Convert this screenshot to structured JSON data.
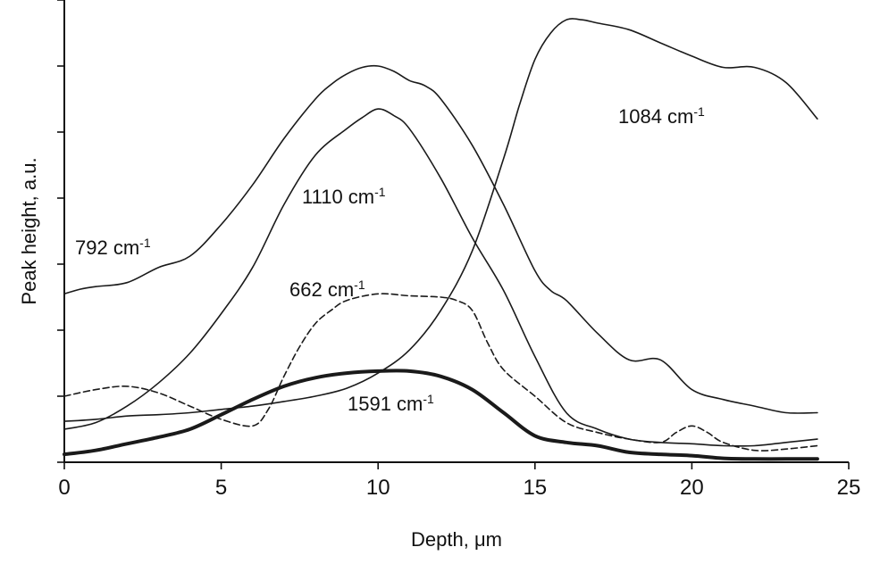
{
  "chart_data": {
    "type": "line",
    "title": "",
    "xlabel": "Depth, μm",
    "ylabel": "Peak height, a.u.",
    "xlim": [
      0,
      25
    ],
    "ylim": [
      0,
      7
    ],
    "x_ticks": [
      "0",
      "5",
      "10",
      "15",
      "20",
      "25"
    ],
    "grid": false,
    "legend": "none (series labelled inline)",
    "series": [
      {
        "name": "792 cm-1",
        "label_base": "792 cm",
        "label_sup": "-1",
        "style": "solid",
        "x": [
          0,
          0.5,
          1,
          2,
          3,
          4,
          5,
          6,
          7,
          8,
          8.5,
          9,
          9.5,
          10,
          10.5,
          11,
          11.5,
          12,
          13,
          14,
          15,
          15.5,
          16,
          17,
          18,
          19,
          20,
          21,
          22,
          23,
          24
        ],
        "y": [
          2.55,
          2.62,
          2.66,
          2.72,
          2.95,
          3.12,
          3.6,
          4.2,
          4.9,
          5.5,
          5.72,
          5.88,
          5.98,
          6.0,
          5.92,
          5.78,
          5.7,
          5.5,
          4.8,
          3.9,
          2.9,
          2.6,
          2.45,
          1.95,
          1.55,
          1.55,
          1.1,
          0.95,
          0.85,
          0.75,
          0.75
        ]
      },
      {
        "name": "1110 cm-1",
        "label_base": "1110 cm",
        "label_sup": "-1",
        "style": "solid",
        "x": [
          0,
          1,
          2,
          3,
          4,
          5,
          6,
          7,
          8,
          9,
          9.5,
          10,
          10.5,
          11,
          12,
          13,
          14,
          15,
          16,
          17,
          18,
          19,
          20,
          21,
          22,
          23,
          24
        ],
        "y": [
          0.5,
          0.6,
          0.85,
          1.2,
          1.65,
          2.25,
          2.95,
          3.9,
          4.65,
          5.05,
          5.22,
          5.35,
          5.25,
          5.05,
          4.3,
          3.4,
          2.6,
          1.6,
          0.75,
          0.5,
          0.35,
          0.3,
          0.28,
          0.25,
          0.25,
          0.3,
          0.35
        ]
      },
      {
        "name": "1084 cm-1",
        "label_base": "1084 cm",
        "label_sup": "-1",
        "style": "solid",
        "x": [
          0,
          1,
          2,
          3,
          4,
          5,
          6,
          7,
          8,
          9,
          10,
          11,
          12,
          13,
          14,
          14.5,
          15,
          15.5,
          16,
          16.5,
          17,
          18,
          19,
          20,
          21,
          22,
          23,
          24
        ],
        "y": [
          0.62,
          0.65,
          0.7,
          0.72,
          0.75,
          0.8,
          0.85,
          0.92,
          1.0,
          1.12,
          1.35,
          1.7,
          2.3,
          3.2,
          4.6,
          5.4,
          6.1,
          6.5,
          6.7,
          6.7,
          6.65,
          6.55,
          6.35,
          6.15,
          5.98,
          5.98,
          5.75,
          5.2
        ]
      },
      {
        "name": "662 cm-1",
        "label_base": "662 cm",
        "label_sup": "-1",
        "style": "dashed",
        "x": [
          0,
          1,
          2,
          3,
          4,
          5,
          6,
          6.5,
          7,
          7.5,
          8,
          8.5,
          9,
          10,
          11,
          12,
          12.5,
          13,
          13.5,
          14,
          15,
          16,
          17,
          18,
          19,
          19.5,
          20,
          20.5,
          21,
          22,
          23,
          24
        ],
        "y": [
          1.0,
          1.1,
          1.15,
          1.05,
          0.85,
          0.65,
          0.55,
          0.8,
          1.3,
          1.75,
          2.1,
          2.3,
          2.45,
          2.55,
          2.52,
          2.5,
          2.45,
          2.3,
          1.8,
          1.4,
          1.0,
          0.6,
          0.45,
          0.35,
          0.3,
          0.45,
          0.55,
          0.45,
          0.3,
          0.18,
          0.2,
          0.25
        ]
      },
      {
        "name": "1591 cm-1",
        "label_base": "1591 cm",
        "label_sup": "-1",
        "style": "thick",
        "x": [
          0,
          1,
          2,
          3,
          4,
          5,
          6,
          7,
          8,
          9,
          10,
          11,
          12,
          13,
          14,
          15,
          16,
          17,
          18,
          19,
          20,
          21,
          22,
          23,
          24
        ],
        "y": [
          0.12,
          0.18,
          0.28,
          0.38,
          0.5,
          0.72,
          0.95,
          1.15,
          1.28,
          1.35,
          1.38,
          1.38,
          1.3,
          1.1,
          0.75,
          0.4,
          0.3,
          0.25,
          0.15,
          0.12,
          0.1,
          0.06,
          0.05,
          0.05,
          0.05
        ]
      }
    ]
  }
}
